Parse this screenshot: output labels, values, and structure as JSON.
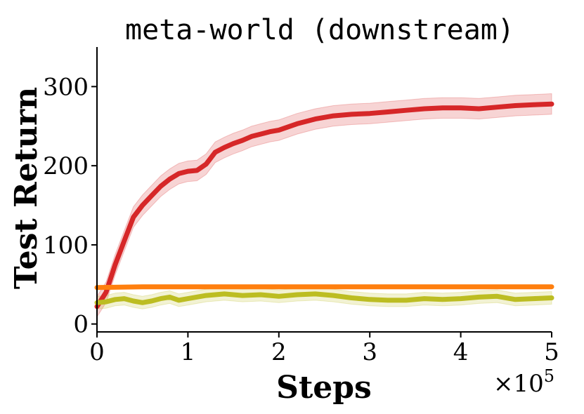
{
  "chart_data": {
    "type": "line",
    "title": "meta-world (downstream)",
    "xlabel": "Steps",
    "ylabel": "Test Return",
    "x_multiplier_base": "×10",
    "x_multiplier_exp": "5",
    "x_ticks": [
      0,
      1,
      2,
      3,
      4,
      5
    ],
    "y_ticks": [
      0,
      100,
      200,
      300
    ],
    "xlim": [
      0,
      5
    ],
    "ylim": [
      -10,
      350
    ],
    "grid": false,
    "legend": "none",
    "series": [
      {
        "color": "#d62728",
        "x": [
          0,
          0.1,
          0.2,
          0.3,
          0.4,
          0.5,
          0.6,
          0.7,
          0.8,
          0.9,
          1.0,
          1.1,
          1.2,
          1.3,
          1.4,
          1.5,
          1.6,
          1.7,
          1.8,
          1.9,
          2.0,
          2.2,
          2.4,
          2.6,
          2.8,
          3.0,
          3.2,
          3.4,
          3.6,
          3.8,
          4.0,
          4.2,
          4.4,
          4.6,
          4.8,
          5.0
        ],
        "values": [
          22,
          40,
          75,
          105,
          135,
          150,
          162,
          174,
          183,
          190,
          193,
          194,
          202,
          217,
          223,
          228,
          232,
          237,
          240,
          243,
          245,
          253,
          259,
          263,
          265,
          266,
          268,
          270,
          272,
          273,
          273,
          272,
          274,
          276,
          277,
          278
        ],
        "band": 13
      },
      {
        "color": "#ff7f0e",
        "x": [
          0,
          0.5,
          1,
          1.5,
          2,
          2.5,
          3,
          3.5,
          4,
          4.5,
          5
        ],
        "values": [
          46,
          47,
          47,
          47,
          47,
          47,
          47,
          47,
          47,
          47,
          47
        ],
        "band": 2
      },
      {
        "color": "#bcbd22",
        "x": [
          0,
          0.1,
          0.2,
          0.3,
          0.4,
          0.5,
          0.6,
          0.7,
          0.8,
          0.9,
          1.0,
          1.2,
          1.4,
          1.6,
          1.8,
          2.0,
          2.2,
          2.4,
          2.6,
          2.8,
          3.0,
          3.2,
          3.4,
          3.6,
          3.8,
          4.0,
          4.2,
          4.4,
          4.6,
          4.8,
          5.0
        ],
        "values": [
          27,
          28,
          31,
          32,
          29,
          27,
          29,
          32,
          34,
          30,
          32,
          36,
          38,
          36,
          37,
          35,
          37,
          38,
          36,
          33,
          31,
          30,
          30,
          32,
          31,
          32,
          34,
          35,
          31,
          32,
          33
        ],
        "band": 8
      }
    ]
  }
}
